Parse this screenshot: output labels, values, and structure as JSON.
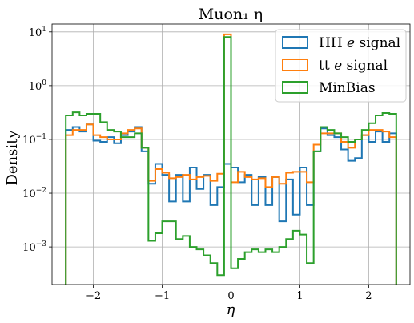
{
  "chart_data": {
    "type": "step-histogram",
    "title": "Muon₁ η",
    "xlabel": "η",
    "ylabel": "Density",
    "yscale": "log",
    "xlim": [
      -2.6,
      2.6
    ],
    "ylim": [
      0.0002,
      14
    ],
    "grid": true,
    "legend_position": "top-right",
    "xticks": [
      -2,
      -1,
      0,
      1,
      2
    ],
    "xtick_labels": [
      "−2",
      "−1",
      "0",
      "1",
      "2"
    ],
    "yticks": [
      0.001,
      0.01,
      0.1,
      1,
      10
    ],
    "ytick_labels": [
      {
        "base": "10",
        "exp": "−3"
      },
      {
        "base": "10",
        "exp": "−2"
      },
      {
        "base": "10",
        "exp": "−1"
      },
      {
        "base": "10",
        "exp": "0"
      },
      {
        "base": "10",
        "exp": "1"
      }
    ],
    "bin_edges": [
      -2.4,
      -2.3,
      -2.2,
      -2.1,
      -2.0,
      -1.9,
      -1.8,
      -1.7,
      -1.6,
      -1.5,
      -1.4,
      -1.3,
      -1.2,
      -1.1,
      -1.0,
      -0.9,
      -0.8,
      -0.7,
      -0.6,
      -0.5,
      -0.4,
      -0.3,
      -0.2,
      -0.1,
      0.0,
      0.1,
      0.2,
      0.3,
      0.4,
      0.5,
      0.6,
      0.7,
      0.8,
      0.9,
      1.0,
      1.1,
      1.2,
      1.3,
      1.4,
      1.5,
      1.6,
      1.7,
      1.8,
      1.9,
      2.0,
      2.1,
      2.2,
      2.3,
      2.4
    ],
    "series": [
      {
        "name": "HH",
        "name_italic": "e",
        "name_suffix": "signal",
        "color": "#1f77b4",
        "values": [
          0.15,
          0.17,
          0.14,
          0.19,
          0.095,
          0.09,
          0.11,
          0.085,
          0.12,
          0.14,
          0.17,
          0.06,
          0.015,
          0.035,
          0.022,
          0.007,
          0.022,
          0.007,
          0.03,
          0.012,
          0.022,
          0.006,
          0.013,
          0.035,
          0.03,
          0.016,
          0.022,
          0.006,
          0.02,
          0.006,
          0.02,
          0.003,
          0.018,
          0.004,
          0.03,
          0.006,
          0.06,
          0.16,
          0.12,
          0.11,
          0.065,
          0.04,
          0.045,
          0.12,
          0.09,
          0.14,
          0.09,
          0.13
        ]
      },
      {
        "name": "tt",
        "name_italic": "e",
        "name_suffix": "signal",
        "color": "#ff7f0e",
        "values": [
          0.12,
          0.15,
          0.15,
          0.19,
          0.12,
          0.11,
          0.1,
          0.1,
          0.13,
          0.15,
          0.16,
          0.07,
          0.017,
          0.028,
          0.024,
          0.019,
          0.02,
          0.022,
          0.018,
          0.02,
          0.021,
          0.017,
          0.023,
          9.0,
          0.016,
          0.025,
          0.02,
          0.018,
          0.019,
          0.013,
          0.02,
          0.015,
          0.024,
          0.025,
          0.025,
          0.016,
          0.08,
          0.13,
          0.13,
          0.13,
          0.09,
          0.07,
          0.1,
          0.12,
          0.15,
          0.15,
          0.14,
          0.11
        ]
      },
      {
        "name": "MinBias",
        "name_italic": "",
        "name_suffix": "",
        "color": "#2ca02c",
        "values": [
          0.28,
          0.32,
          0.28,
          0.3,
          0.3,
          0.21,
          0.15,
          0.14,
          0.11,
          0.11,
          0.13,
          0.07,
          0.0013,
          0.0018,
          0.003,
          0.003,
          0.0014,
          0.0016,
          0.001,
          0.0009,
          0.0007,
          0.0005,
          0.0003,
          8.0,
          0.0004,
          0.0006,
          0.0008,
          0.0009,
          0.0008,
          0.0009,
          0.0008,
          0.001,
          0.0014,
          0.002,
          0.0017,
          0.0005,
          0.06,
          0.17,
          0.15,
          0.13,
          0.11,
          0.09,
          0.1,
          0.15,
          0.2,
          0.28,
          0.31,
          0.3
        ]
      }
    ]
  }
}
